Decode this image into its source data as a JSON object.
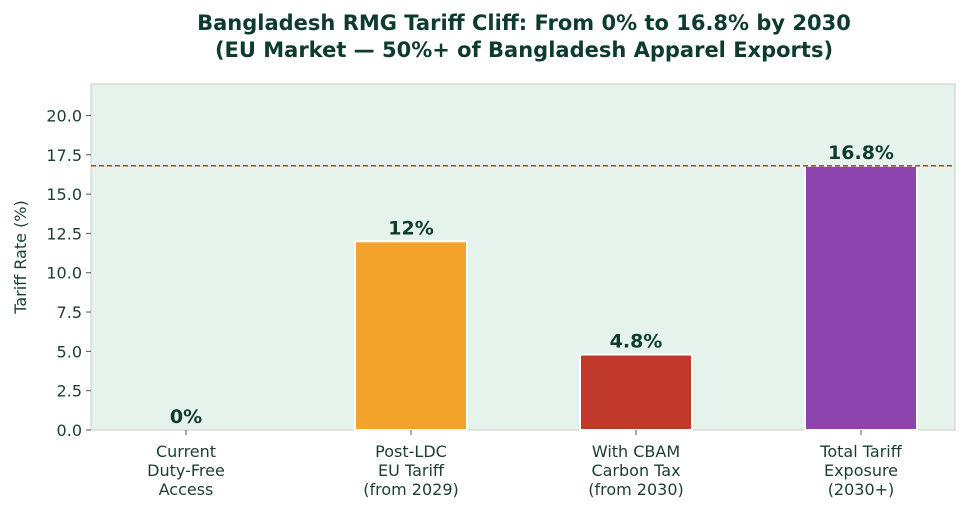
{
  "chart_data": {
    "type": "bar",
    "title": [
      "Bangladesh RMG Tariff Cliff: From 0% to 16.8% by 2030",
      "(EU Market — 50%+ of Bangladesh Apparel Exports)"
    ],
    "xlabel": "",
    "ylabel": "Tariff Rate (%)",
    "ylim": [
      0,
      22
    ],
    "yticks": [
      "0.0",
      "2.5",
      "5.0",
      "7.5",
      "10.0",
      "12.5",
      "15.0",
      "17.5",
      "20.0"
    ],
    "categories": [
      [
        "Current",
        "Duty-Free",
        "Access"
      ],
      [
        "Post-LDC",
        "EU Tariff",
        "(from 2029)"
      ],
      [
        "With CBAM",
        "Carbon Tax",
        "(from 2030)"
      ],
      [
        "Total Tariff",
        "Exposure",
        "(2030+)"
      ]
    ],
    "values": [
      0,
      12,
      4.8,
      16.8
    ],
    "data_labels": [
      "0%",
      "12%",
      "4.8%",
      "16.8%"
    ],
    "colors": [
      "#2e8b57",
      "#f4a32a",
      "#c0392b",
      "#8e44ad"
    ],
    "reference_line": {
      "value": 16.8,
      "color": "#c0392b",
      "style": "dashed"
    },
    "background": "#e6f3ec",
    "grid": false
  }
}
